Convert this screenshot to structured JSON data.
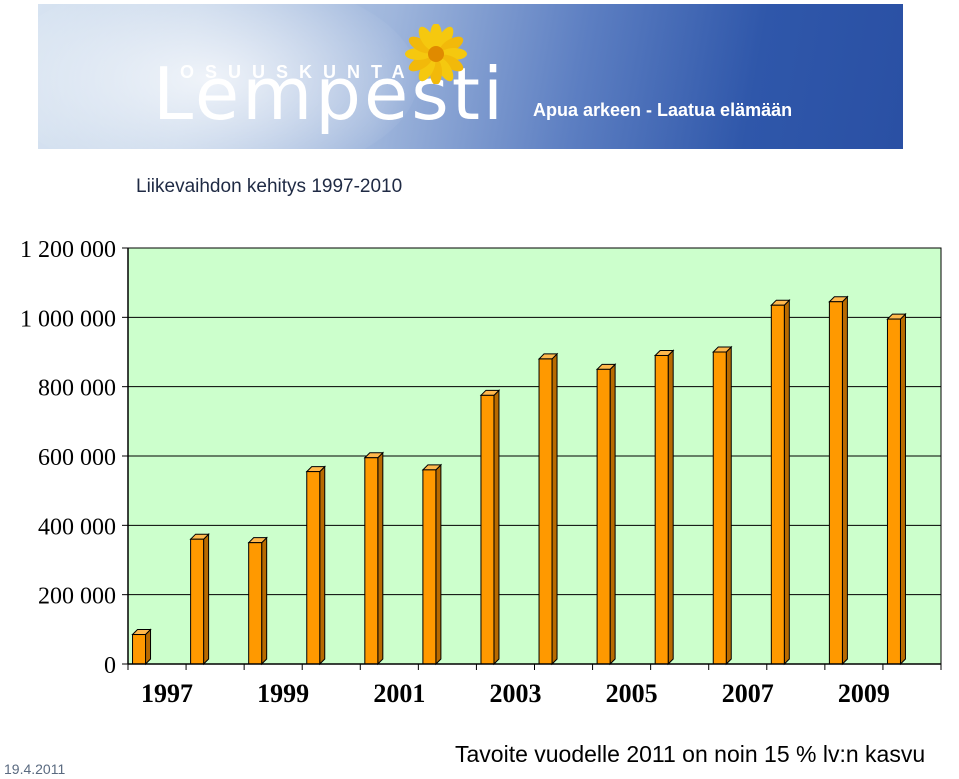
{
  "banner": {
    "brand_small": "OSUUSKUNTA",
    "brand_big": "Lempesti",
    "slogan": "Apua arkeen - Laatua elämään",
    "logo_icon": "sunflower-icon",
    "colors": {
      "banner_dark": "#2a50a4",
      "banner_light": "#d7e3f1",
      "sunflower": "#f5c80f"
    }
  },
  "footer": {
    "date": "19.4.2011",
    "note": "Tavoite vuodelle 2011 on noin 15 % lv:n kasvu"
  },
  "chart_data": {
    "type": "bar",
    "title": "Liikevaihdon kehitys  1997-2010",
    "xlabel": "",
    "ylabel": "",
    "categories": [
      "1997",
      "1998",
      "1999",
      "2000",
      "2001",
      "2002",
      "2003",
      "2004",
      "2005",
      "2006",
      "2007",
      "2008",
      "2009",
      "2010"
    ],
    "x_tick_labels": [
      "1997",
      "1999",
      "2001",
      "2003",
      "2005",
      "2007",
      "2009"
    ],
    "values": [
      85000,
      360000,
      350000,
      555000,
      595000,
      560000,
      775000,
      880000,
      850000,
      890000,
      900000,
      1035000,
      1045000,
      995000
    ],
    "ylim": [
      0,
      1200000
    ],
    "y_ticks": [
      0,
      200000,
      400000,
      600000,
      800000,
      1000000,
      1200000
    ],
    "y_tick_labels": [
      "0",
      "200 000",
      "400 000",
      "600 000",
      "800 000",
      "1 000 000",
      "1 200 000"
    ],
    "grid": true,
    "legend": "none",
    "colors": {
      "bar": "#ff9900",
      "plot_background": "#ccffcc",
      "gridline": "#000000"
    }
  }
}
